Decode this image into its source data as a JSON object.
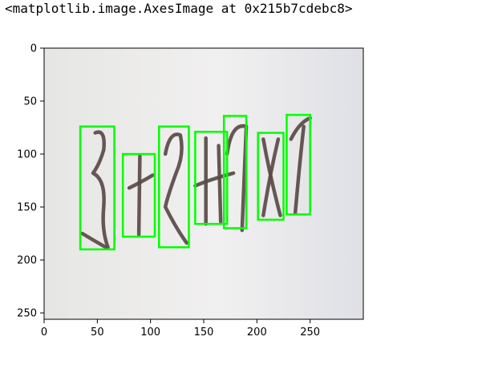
{
  "output_text": "<matplotlib.image.AxesImage at 0x215b7cdebc8>",
  "colors": {
    "box": "#00ff00",
    "stroke": "#5a4a46",
    "paper": "#eceaea",
    "axis": "#000000"
  },
  "chart_data": {
    "type": "image",
    "xlim": [
      0,
      300
    ],
    "ylim": [
      256,
      0
    ],
    "x_ticks": [
      0,
      50,
      100,
      150,
      200,
      250
    ],
    "y_ticks": [
      0,
      50,
      100,
      150,
      200,
      250
    ],
    "boxes": [
      {
        "x0": 34,
        "y0": 74,
        "x1": 66,
        "y1": 190
      },
      {
        "x0": 74,
        "y0": 100,
        "x1": 104,
        "y1": 178
      },
      {
        "x0": 108,
        "y0": 74,
        "x1": 136,
        "y1": 188
      },
      {
        "x0": 142,
        "y0": 79,
        "x1": 172,
        "y1": 166
      },
      {
        "x0": 169,
        "y0": 64,
        "x1": 190,
        "y1": 170
      },
      {
        "x0": 201,
        "y0": 80,
        "x1": 225,
        "y1": 162
      },
      {
        "x0": 228,
        "y0": 63,
        "x1": 250,
        "y1": 157
      }
    ]
  }
}
